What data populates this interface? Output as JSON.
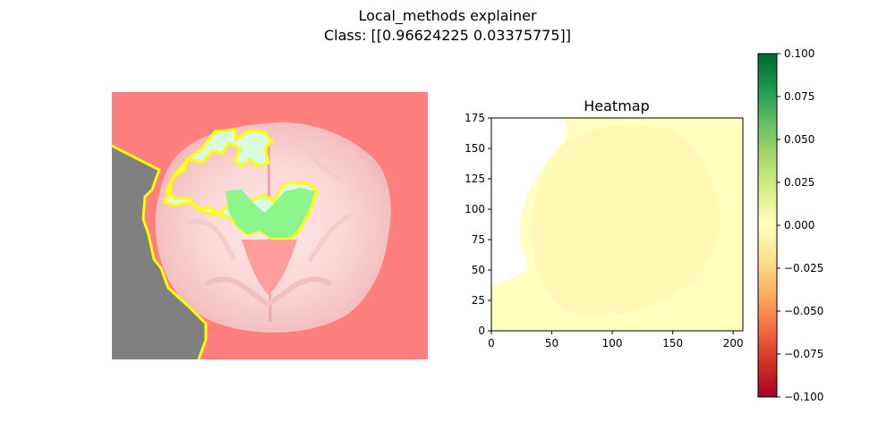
{
  "figure": {
    "title_line1": "Local_methods explainer",
    "title_line2": "Class: [[0.96624225 0.03375775]]"
  },
  "chart_data": [
    {
      "type": "image",
      "title": "",
      "description_shown": "Brain MRI slice with LIME superpixel mask overlay",
      "colors": {
        "background_mask": "#ff7f7f",
        "excluded_region": "#808080",
        "highlight": "#8cf58c",
        "boundary": "#ffff00"
      }
    },
    {
      "type": "heatmap",
      "title": "Heatmap",
      "xlim": [
        0,
        208
      ],
      "ylim": [
        175,
        0
      ],
      "xticks": [
        0,
        50,
        100,
        150,
        200
      ],
      "yticks": [
        0,
        25,
        50,
        75,
        100,
        125,
        150,
        175
      ],
      "colormap": "RdYlGn",
      "colorbar": {
        "vmin": -0.1,
        "vmax": 0.1,
        "ticks": [
          "0.100",
          "0.075",
          "0.050",
          "0.025",
          "0.000",
          "−0.025",
          "−0.050",
          "−0.075",
          "−0.100"
        ]
      },
      "region_values": {
        "background": 0.0,
        "brain": -0.004,
        "excluded": null
      }
    }
  ]
}
